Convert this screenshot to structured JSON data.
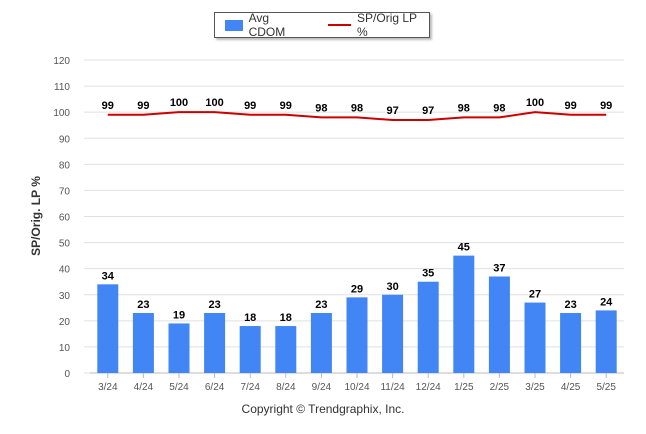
{
  "legend": {
    "bar_label": "Avg CDOM",
    "line_label": "SP/Orig LP %"
  },
  "copyright": "Copyright © Trendgraphix, Inc.",
  "colors": {
    "bar": "#4285f4",
    "line": "#cc0000",
    "grid": "#e0e0e0",
    "axis_text": "#555555"
  },
  "chart_data": {
    "type": "bar",
    "categories": [
      "3/24",
      "4/24",
      "5/24",
      "6/24",
      "7/24",
      "8/24",
      "9/24",
      "10/24",
      "11/24",
      "12/24",
      "1/25",
      "2/25",
      "3/25",
      "4/25",
      "5/25"
    ],
    "series": [
      {
        "name": "Avg CDOM",
        "type": "bar",
        "values": [
          34,
          23,
          19,
          23,
          18,
          18,
          23,
          29,
          30,
          35,
          45,
          37,
          27,
          23,
          24
        ]
      },
      {
        "name": "SP/Orig LP %",
        "type": "line",
        "values": [
          99,
          99,
          100,
          100,
          99,
          99,
          98,
          98,
          97,
          97,
          98,
          98,
          100,
          99,
          99
        ]
      }
    ],
    "ylabel": "SP/Orig. LP %",
    "xlabel": "",
    "ylim": [
      0,
      120
    ],
    "yticks": [
      0,
      10,
      20,
      30,
      40,
      50,
      60,
      70,
      80,
      90,
      100,
      110,
      120
    ],
    "grid": true,
    "legend_position": "top-center"
  }
}
